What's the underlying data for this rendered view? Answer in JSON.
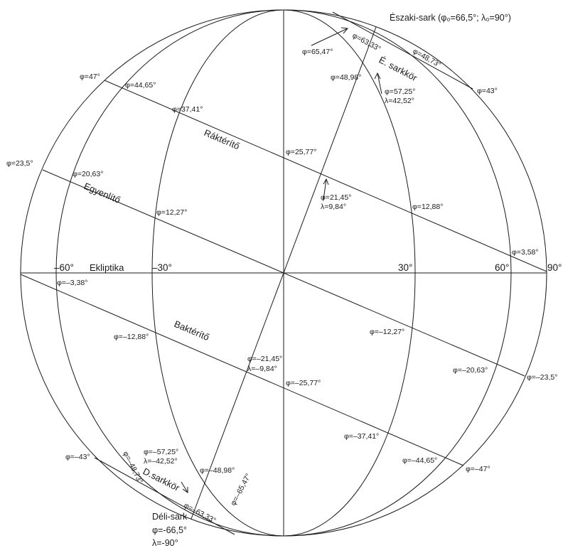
{
  "north_pole": "Északi-sark (φ₀=66,5°; λ₀=90°)",
  "south_pole": {
    "line1": "Déli-sark",
    "line2": "φ=-66,5°",
    "line3": "λ=-90°"
  },
  "circles": {
    "tropic_cancer": "Ráktérítő",
    "equator": "Egyenlítő",
    "tropic_capricorn": "Baktérítő",
    "arctic": "É. sarkkör",
    "antarctic": "D.sarkkör",
    "ecliptic": "Ekliptika"
  },
  "longitudes": {
    "m60": "–60°",
    "m30": "–30°",
    "p30": "30°",
    "p60": "60°",
    "p90": "90°"
  },
  "left_rim": {
    "p47": "φ=47°",
    "p23": "φ=23,5°",
    "m43": "φ=–43°"
  },
  "right_rim": {
    "p43": "φ=43°",
    "m23": "φ=–23,5°",
    "m47": "φ=–47°"
  },
  "arctic_labels": {
    "p6333": "φ=63,33°",
    "p6547": "φ=65,47°",
    "p4873": "φ=48,73°",
    "p5725": "φ=57,25°",
    "l4252": "λ=42,52°"
  },
  "antarctic_labels": {
    "m6333": "φ=–63,33°",
    "m6547": "φ=–65,47°",
    "m4873": "φ=–48,73°",
    "m5725": "φ=–57,25°",
    "lm4252": "λ=–42,52°"
  },
  "tropic_cancer_labels": {
    "p4465": "φ=44,65°",
    "p3741": "φ=37,41°",
    "p2577": "φ=25,77°",
    "p1288": "φ=12,88°",
    "p358": "φ=3,58°"
  },
  "equator_labels": {
    "p2063": "φ=20,63°",
    "p1227": "φ=12,27°",
    "p2145": "φ=21,45°",
    "l984": "λ=9,84°"
  },
  "tropic_capricorn_labels": {
    "m338": "φ=–3,38°",
    "m1288": "φ=–12,88°",
    "m2577": "φ=–25,77°",
    "m3741": "φ=–37,41°",
    "m4465": "φ=–44,65°"
  },
  "lower_labels": {
    "m1227": "φ=–12,27°",
    "m2063": "φ=–20,63°",
    "m2145": "φ=–21,45°",
    "lm984": "λ=–9,84°",
    "m4898": "φ=–48,98°"
  },
  "upper_misc": {
    "p4898": "φ=48,98°"
  }
}
